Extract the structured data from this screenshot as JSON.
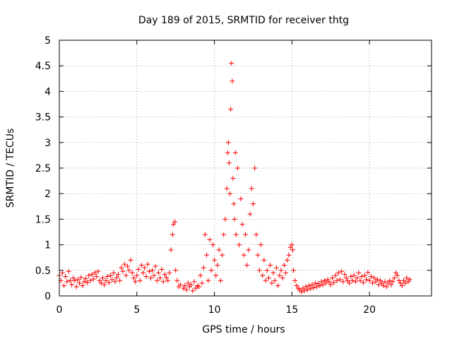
{
  "chart_data": {
    "type": "scatter",
    "title": "Day 189 of 2015, SRMTID for receiver thtg",
    "xlabel": "GPS time / hours",
    "ylabel": "SRMTID / TECUs",
    "xlim": [
      0,
      24
    ],
    "ylim": [
      0,
      5
    ],
    "xticks": [
      0,
      5,
      10,
      15,
      20
    ],
    "yticks": [
      0,
      0.5,
      1,
      1.5,
      2,
      2.5,
      3,
      3.5,
      4,
      4.5,
      5
    ],
    "xtick_labels": [
      "0",
      "5",
      "10",
      "15",
      "20"
    ],
    "ytick_labels": [
      "0",
      "0.5",
      "1",
      "1.5",
      "2",
      "2.5",
      "3",
      "3.5",
      "4",
      "4.5",
      "5"
    ],
    "grid": true,
    "legend": "none",
    "marker": "plus",
    "color": "#ff0000",
    "series": [
      {
        "name": "SRMTID",
        "points": [
          [
            0.0,
            0.4
          ],
          [
            0.1,
            0.3
          ],
          [
            0.2,
            0.45
          ],
          [
            0.3,
            0.2
          ],
          [
            0.4,
            0.38
          ],
          [
            0.5,
            0.28
          ],
          [
            0.6,
            0.48
          ],
          [
            0.7,
            0.3
          ],
          [
            0.8,
            0.22
          ],
          [
            0.9,
            0.35
          ],
          [
            1.0,
            0.3
          ],
          [
            1.1,
            0.18
          ],
          [
            1.2,
            0.32
          ],
          [
            1.3,
            0.25
          ],
          [
            1.4,
            0.36
          ],
          [
            1.5,
            0.2
          ],
          [
            1.6,
            0.28
          ],
          [
            1.7,
            0.34
          ],
          [
            1.8,
            0.26
          ],
          [
            1.9,
            0.4
          ],
          [
            2.0,
            0.3
          ],
          [
            2.1,
            0.42
          ],
          [
            2.2,
            0.33
          ],
          [
            2.3,
            0.45
          ],
          [
            2.4,
            0.38
          ],
          [
            2.5,
            0.48
          ],
          [
            2.6,
            0.3
          ],
          [
            2.7,
            0.25
          ],
          [
            2.8,
            0.35
          ],
          [
            2.9,
            0.22
          ],
          [
            3.0,
            0.3
          ],
          [
            3.1,
            0.38
          ],
          [
            3.2,
            0.26
          ],
          [
            3.3,
            0.4
          ],
          [
            3.4,
            0.32
          ],
          [
            3.5,
            0.45
          ],
          [
            3.6,
            0.28
          ],
          [
            3.7,
            0.36
          ],
          [
            3.8,
            0.42
          ],
          [
            3.9,
            0.3
          ],
          [
            4.0,
            0.55
          ],
          [
            4.1,
            0.48
          ],
          [
            4.2,
            0.62
          ],
          [
            4.3,
            0.4
          ],
          [
            4.4,
            0.58
          ],
          [
            4.5,
            0.5
          ],
          [
            4.6,
            0.7
          ],
          [
            4.7,
            0.45
          ],
          [
            4.8,
            0.35
          ],
          [
            4.9,
            0.28
          ],
          [
            5.0,
            0.4
          ],
          [
            5.1,
            0.52
          ],
          [
            5.2,
            0.3
          ],
          [
            5.3,
            0.6
          ],
          [
            5.4,
            0.45
          ],
          [
            5.5,
            0.55
          ],
          [
            5.6,
            0.38
          ],
          [
            5.7,
            0.62
          ],
          [
            5.8,
            0.48
          ],
          [
            5.9,
            0.35
          ],
          [
            6.0,
            0.5
          ],
          [
            6.1,
            0.4
          ],
          [
            6.2,
            0.58
          ],
          [
            6.3,
            0.3
          ],
          [
            6.4,
            0.45
          ],
          [
            6.5,
            0.35
          ],
          [
            6.6,
            0.52
          ],
          [
            6.7,
            0.28
          ],
          [
            6.8,
            0.42
          ],
          [
            6.9,
            0.36
          ],
          [
            7.0,
            0.3
          ],
          [
            7.1,
            0.45
          ],
          [
            7.2,
            0.9
          ],
          [
            7.3,
            1.2
          ],
          [
            7.35,
            1.4
          ],
          [
            7.45,
            1.45
          ],
          [
            7.5,
            0.5
          ],
          [
            7.6,
            0.3
          ],
          [
            7.7,
            0.18
          ],
          [
            7.8,
            0.22
          ],
          [
            8.0,
            0.15
          ],
          [
            8.1,
            0.2
          ],
          [
            8.2,
            0.12
          ],
          [
            8.3,
            0.25
          ],
          [
            8.4,
            0.18
          ],
          [
            8.5,
            0.22
          ],
          [
            8.6,
            0.1
          ],
          [
            8.7,
            0.28
          ],
          [
            8.8,
            0.15
          ],
          [
            8.9,
            0.2
          ],
          [
            9.0,
            0.18
          ],
          [
            9.1,
            0.4
          ],
          [
            9.2,
            0.25
          ],
          [
            9.3,
            0.55
          ],
          [
            9.4,
            1.2
          ],
          [
            9.5,
            0.8
          ],
          [
            9.6,
            0.3
          ],
          [
            9.7,
            1.1
          ],
          [
            9.8,
            0.5
          ],
          [
            9.9,
            1.0
          ],
          [
            10.0,
            0.7
          ],
          [
            10.1,
            0.4
          ],
          [
            10.2,
            0.6
          ],
          [
            10.3,
            0.9
          ],
          [
            10.4,
            0.3
          ],
          [
            10.5,
            0.8
          ],
          [
            10.6,
            1.2
          ],
          [
            10.7,
            1.5
          ],
          [
            10.8,
            2.1
          ],
          [
            10.85,
            2.8
          ],
          [
            10.9,
            3.0
          ],
          [
            10.95,
            2.6
          ],
          [
            11.0,
            2.0
          ],
          [
            11.05,
            3.65
          ],
          [
            11.1,
            4.55
          ],
          [
            11.15,
            4.2
          ],
          [
            11.2,
            2.3
          ],
          [
            11.25,
            1.8
          ],
          [
            11.3,
            1.5
          ],
          [
            11.35,
            2.8
          ],
          [
            11.4,
            1.2
          ],
          [
            11.5,
            2.5
          ],
          [
            11.6,
            1.0
          ],
          [
            11.7,
            1.9
          ],
          [
            11.8,
            1.4
          ],
          [
            11.9,
            0.8
          ],
          [
            12.0,
            1.2
          ],
          [
            12.1,
            0.6
          ],
          [
            12.2,
            0.9
          ],
          [
            12.3,
            1.6
          ],
          [
            12.4,
            2.1
          ],
          [
            12.5,
            1.8
          ],
          [
            12.6,
            2.5
          ],
          [
            12.7,
            1.2
          ],
          [
            12.8,
            0.8
          ],
          [
            12.9,
            0.5
          ],
          [
            13.0,
            1.0
          ],
          [
            13.1,
            0.4
          ],
          [
            13.2,
            0.7
          ],
          [
            13.3,
            0.3
          ],
          [
            13.4,
            0.5
          ],
          [
            13.5,
            0.35
          ],
          [
            13.6,
            0.6
          ],
          [
            13.7,
            0.25
          ],
          [
            13.8,
            0.45
          ],
          [
            13.9,
            0.3
          ],
          [
            14.0,
            0.55
          ],
          [
            14.1,
            0.2
          ],
          [
            14.2,
            0.4
          ],
          [
            14.3,
            0.5
          ],
          [
            14.4,
            0.35
          ],
          [
            14.5,
            0.6
          ],
          [
            14.6,
            0.45
          ],
          [
            14.7,
            0.7
          ],
          [
            14.8,
            0.8
          ],
          [
            14.9,
            0.95
          ],
          [
            15.0,
            1.0
          ],
          [
            15.05,
            0.9
          ],
          [
            15.1,
            0.5
          ],
          [
            15.2,
            0.3
          ],
          [
            15.3,
            0.2
          ],
          [
            15.4,
            0.15
          ],
          [
            15.5,
            0.12
          ],
          [
            15.6,
            0.08
          ],
          [
            15.7,
            0.15
          ],
          [
            15.8,
            0.1
          ],
          [
            15.9,
            0.18
          ],
          [
            16.0,
            0.12
          ],
          [
            16.1,
            0.2
          ],
          [
            16.2,
            0.14
          ],
          [
            16.3,
            0.22
          ],
          [
            16.4,
            0.16
          ],
          [
            16.5,
            0.25
          ],
          [
            16.6,
            0.18
          ],
          [
            16.7,
            0.24
          ],
          [
            16.8,
            0.2
          ],
          [
            16.9,
            0.28
          ],
          [
            17.0,
            0.22
          ],
          [
            17.1,
            0.3
          ],
          [
            17.2,
            0.25
          ],
          [
            17.3,
            0.32
          ],
          [
            17.4,
            0.28
          ],
          [
            17.5,
            0.22
          ],
          [
            17.6,
            0.35
          ],
          [
            17.7,
            0.26
          ],
          [
            17.8,
            0.4
          ],
          [
            17.9,
            0.3
          ],
          [
            18.0,
            0.45
          ],
          [
            18.1,
            0.32
          ],
          [
            18.2,
            0.48
          ],
          [
            18.3,
            0.28
          ],
          [
            18.4,
            0.42
          ],
          [
            18.5,
            0.35
          ],
          [
            18.6,
            0.3
          ],
          [
            18.7,
            0.25
          ],
          [
            18.8,
            0.38
          ],
          [
            18.9,
            0.3
          ],
          [
            19.0,
            0.4
          ],
          [
            19.1,
            0.28
          ],
          [
            19.2,
            0.35
          ],
          [
            19.3,
            0.45
          ],
          [
            19.4,
            0.3
          ],
          [
            19.5,
            0.38
          ],
          [
            19.6,
            0.26
          ],
          [
            19.7,
            0.4
          ],
          [
            19.8,
            0.32
          ],
          [
            19.9,
            0.46
          ],
          [
            20.0,
            0.3
          ],
          [
            20.1,
            0.38
          ],
          [
            20.2,
            0.25
          ],
          [
            20.3,
            0.35
          ],
          [
            20.4,
            0.28
          ],
          [
            20.5,
            0.32
          ],
          [
            20.6,
            0.22
          ],
          [
            20.7,
            0.3
          ],
          [
            20.8,
            0.25
          ],
          [
            20.9,
            0.2
          ],
          [
            21.0,
            0.28
          ],
          [
            21.1,
            0.18
          ],
          [
            21.2,
            0.25
          ],
          [
            21.3,
            0.3
          ],
          [
            21.4,
            0.22
          ],
          [
            21.5,
            0.28
          ],
          [
            21.6,
            0.35
          ],
          [
            21.7,
            0.45
          ],
          [
            21.8,
            0.4
          ],
          [
            21.9,
            0.3
          ],
          [
            22.0,
            0.25
          ],
          [
            22.1,
            0.2
          ],
          [
            22.2,
            0.3
          ],
          [
            22.3,
            0.25
          ],
          [
            22.4,
            0.35
          ],
          [
            22.5,
            0.28
          ],
          [
            22.6,
            0.32
          ]
        ]
      }
    ]
  }
}
